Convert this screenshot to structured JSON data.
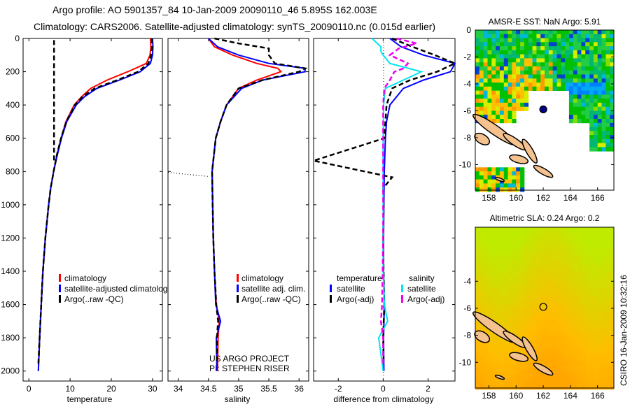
{
  "title_line1": "Argo profile: AO 5901357_84 10-Jan-2009 20090110_46 5.895S 162.003E",
  "title_line2": "Climatology: CARS2006. Satellite-adjusted climatology: synTS_20090110.nc (0.015d earlier)",
  "credit": "CSIRO 16-Jan-2009 10:32:16",
  "project_note": [
    "US ARGO PROJECT",
    "PI: STEPHEN RISER"
  ],
  "colors": {
    "clim": "#ff0000",
    "sat": "#0000ff",
    "argo": "#000000",
    "sal_sat": "#00e5ee",
    "sal_argo": "#ee00ee",
    "land": "#f5c28f"
  },
  "chart_data": [
    {
      "type": "line",
      "id": "temperature",
      "xlabel": "temperature",
      "ylabel": "",
      "xlim": [
        -1.4,
        32.4
      ],
      "ylim": [
        2060,
        0
      ],
      "xticks": [
        0,
        10,
        20,
        30
      ],
      "yticks": [
        0,
        200,
        400,
        600,
        800,
        1000,
        1200,
        1400,
        1600,
        1800,
        2000
      ],
      "legend": [
        "climatology",
        "satellite-adjusted climatology",
        "Argo(..raw -QC)"
      ],
      "series": [
        {
          "name": "climatology",
          "color": "clim",
          "style": "solid",
          "depth": [
            0,
            50,
            100,
            150,
            200,
            250,
            300,
            350,
            400,
            500,
            600,
            700,
            800,
            900,
            1000,
            1200,
            1400,
            1600,
            1800,
            2000
          ],
          "values": [
            29.5,
            29.6,
            29.4,
            28.5,
            24,
            19,
            15,
            12.8,
            11,
            9,
            7.8,
            6.8,
            6,
            5.3,
            4.8,
            4,
            3.4,
            3,
            2.6,
            2.3
          ]
        },
        {
          "name": "satellite-adjusted climatology",
          "color": "sat",
          "style": "solid",
          "depth": [
            0,
            50,
            100,
            150,
            200,
            250,
            300,
            350,
            400,
            500,
            600,
            700,
            800,
            900,
            1000,
            1200,
            1400,
            1600,
            1800,
            2000
          ],
          "values": [
            30,
            30.1,
            30,
            29.5,
            27,
            22,
            16.5,
            13.5,
            11.5,
            9.2,
            7.9,
            6.9,
            6,
            5.3,
            4.8,
            4,
            3.4,
            3,
            2.6,
            2.3
          ]
        },
        {
          "name": "Argo(..raw -QC)",
          "color": "argo",
          "style": "dashed",
          "depth": [
            0,
            50,
            100,
            150,
            200,
            250,
            300,
            350,
            400,
            500,
            600,
            700,
            800,
            900,
            1000,
            1200,
            1400,
            1600,
            1800,
            1960
          ],
          "values": [
            29.8,
            29.9,
            29.7,
            29,
            26.5,
            21.5,
            16,
            13,
            11.2,
            9.1,
            7.8,
            6.8,
            6,
            5.3,
            4.8,
            4,
            3.4,
            3,
            2.6,
            2.3
          ]
        },
        {
          "name": "Argo raw",
          "color": "argo",
          "style": "dashed",
          "depth": [
            10,
            750
          ],
          "values": [
            6.1,
            6.1
          ]
        }
      ]
    },
    {
      "type": "line",
      "id": "salinity",
      "xlabel": "salinity",
      "xlim": [
        33.83,
        36.16
      ],
      "ylim": [
        2060,
        0
      ],
      "xticks": [
        34,
        34.5,
        35,
        35.5,
        36
      ],
      "legend": [
        "climatology",
        "satellite adj. clim.",
        "Argo(..raw -QC)"
      ],
      "series": [
        {
          "name": "climatology",
          "color": "clim",
          "style": "solid",
          "depth": [
            0,
            50,
            100,
            150,
            180,
            200,
            250,
            300,
            400,
            500,
            600,
            800,
            1000,
            1200,
            1400,
            1600,
            1700,
            1800,
            2000
          ],
          "values": [
            34.5,
            34.6,
            34.9,
            35.3,
            35.65,
            35.7,
            35.3,
            35.0,
            34.8,
            34.7,
            34.62,
            34.56,
            34.57,
            34.58,
            34.6,
            34.63,
            34.68,
            34.66,
            34.65
          ]
        },
        {
          "name": "satellite adj. clim.",
          "color": "sat",
          "style": "solid",
          "depth": [
            0,
            50,
            100,
            150,
            180,
            200,
            250,
            300,
            400,
            500,
            600,
            800,
            1000,
            1200,
            1400,
            1600,
            1700,
            1800,
            2000
          ],
          "values": [
            34.5,
            34.65,
            35.0,
            35.5,
            36.1,
            36.1,
            35.4,
            35.05,
            34.8,
            34.7,
            34.62,
            34.56,
            34.57,
            34.58,
            34.6,
            34.62,
            34.7,
            34.63,
            34.64
          ]
        },
        {
          "name": "Argo(..raw -QC)",
          "color": "argo",
          "style": "dashed",
          "depth": [
            0,
            30,
            60,
            100,
            150,
            180,
            200,
            250,
            300,
            400,
            500,
            600,
            800,
            1000,
            1200,
            1400,
            1600,
            1700,
            1800,
            1960
          ],
          "values": [
            34.6,
            35.0,
            35.5,
            35.5,
            35.6,
            36.1,
            36.0,
            35.4,
            35.0,
            34.8,
            34.7,
            34.62,
            34.56,
            34.57,
            34.58,
            34.6,
            34.63,
            34.66,
            34.64,
            34.64
          ]
        },
        {
          "name": "Argo raw outlier",
          "color": "argo",
          "style": "dotted",
          "depth": [
            805,
            830
          ],
          "values": [
            33.83,
            34.5
          ]
        }
      ]
    },
    {
      "type": "line",
      "id": "difference",
      "xlabel": "difference from climatology",
      "xlim": [
        -3.1,
        3.2
      ],
      "ylim": [
        2060,
        0
      ],
      "xticks": [
        -2,
        0,
        2
      ],
      "legend_headers": [
        "temperature",
        "salinity"
      ],
      "legend": [
        "satellite",
        "Argo(-adj)",
        "satellite",
        "Argo(-adj)"
      ],
      "series": [
        {
          "name": "temperature satellite",
          "color": "sat",
          "style": "solid",
          "depth": [
            0,
            50,
            100,
            150,
            200,
            250,
            300,
            400,
            500,
            600,
            800,
            1000,
            1200,
            1400,
            1600,
            1800,
            2000
          ],
          "values": [
            0.3,
            0.8,
            1.8,
            3.2,
            3.0,
            1.8,
            0.9,
            0.3,
            0.15,
            0.1,
            0.05,
            0.03,
            0.02,
            0.02,
            0.05,
            0.02,
            0.03
          ]
        },
        {
          "name": "temperature Argo(-adj)",
          "color": "argo",
          "style": "dashed",
          "depth": [
            0,
            50,
            100,
            150,
            200,
            250,
            300,
            400,
            600,
            735,
            835,
            900,
            1000,
            1200,
            1400,
            1600,
            1800,
            1960
          ],
          "values": [
            0.4,
            1.3,
            2.3,
            3.2,
            2.4,
            1.2,
            0.4,
            0.15,
            0.05,
            -3.1,
            0.4,
            0.0,
            0.02,
            0.0,
            0.02,
            0.05,
            0.0,
            0.02
          ]
        },
        {
          "name": "salinity satellite",
          "color": "sal_sat",
          "style": "solid",
          "depth": [
            0,
            50,
            80,
            100,
            150,
            200,
            250,
            300,
            400,
            600,
            800,
            1000,
            1200,
            1400,
            1600,
            1700,
            1750,
            1800,
            2000
          ],
          "values": [
            -0.5,
            -0.1,
            -0.1,
            0.0,
            0.3,
            1.7,
            0.9,
            0.1,
            0.02,
            0.0,
            0.0,
            0.0,
            0.0,
            0.0,
            0.05,
            0.2,
            0.0,
            -0.2,
            0.0
          ]
        },
        {
          "name": "salinity Argo(-adj)",
          "color": "sal_argo",
          "style": "dashed",
          "depth": [
            0,
            30,
            60,
            100,
            150,
            180,
            200,
            250,
            300,
            400,
            800,
            1200,
            1600,
            1700,
            1750,
            1800,
            1960
          ],
          "values": [
            0.6,
            1.5,
            0.7,
            0.3,
            1.1,
            0.9,
            0.5,
            0.3,
            0.05,
            0.0,
            0.0,
            0.0,
            -0.05,
            -0.1,
            -0.05,
            0.0,
            0.0
          ]
        }
      ]
    },
    {
      "type": "heatmap",
      "id": "sst_map",
      "title": "AMSR-E SST: NaN Argo: 5.91",
      "xlim": [
        157,
        167.2
      ],
      "ylim": [
        -11.9,
        0
      ],
      "xticks": [
        158,
        160,
        162,
        164,
        166
      ],
      "yticks": [
        0,
        -2,
        -4,
        -6,
        -8,
        -10
      ],
      "argo_position": {
        "lon": 162.003,
        "lat": -5.895
      }
    },
    {
      "type": "heatmap",
      "id": "sla_map",
      "title": "Altimetric SLA: 0.24 Argo: 0.2",
      "xlim": [
        157,
        167.2
      ],
      "ylim": [
        -11.9,
        0
      ],
      "xticks": [
        158,
        160,
        162,
        164,
        166
      ],
      "yticks": [
        -4,
        -6,
        -8,
        -10
      ],
      "argo_position": {
        "lon": 162.003,
        "lat": -5.895
      }
    }
  ]
}
